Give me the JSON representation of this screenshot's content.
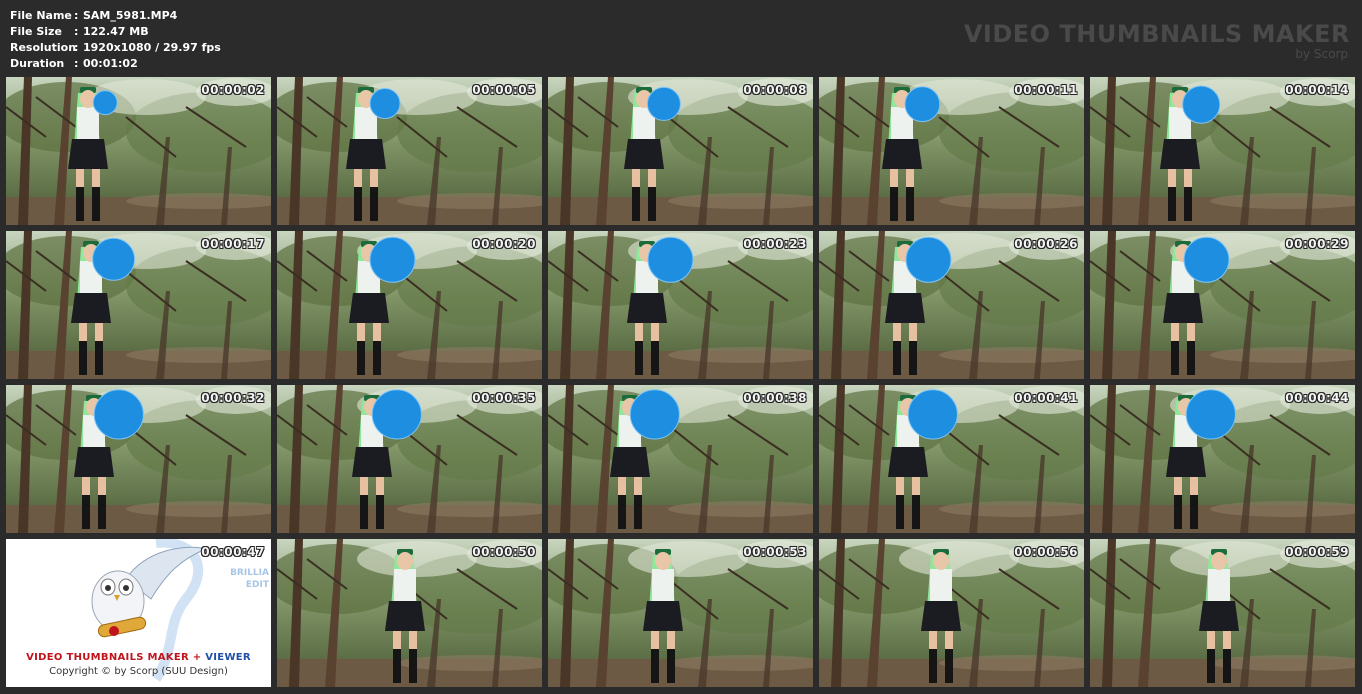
{
  "info": {
    "file_name_label": "File Name",
    "file_name": "SAM_5981.MP4",
    "file_size_label": "File Size",
    "file_size": "122.47 MB",
    "resolution_label": "Resolution",
    "resolution": "1920x1080 / 29.97 fps",
    "duration_label": "Duration",
    "duration": "00:01:02",
    "separator": ":"
  },
  "brand": {
    "title": "VIDEO THUMBNAILS MAKER",
    "byline": "by Scorp"
  },
  "logo": {
    "name_part1": "VIDEO THUMBNAILS MAKER",
    "name_plus": " + ",
    "name_part2": "VIEWER",
    "copyright": "Copyright © by Scorp (SUU Design)",
    "side_line1": "BRILLIA",
    "side_line2": "EDIT"
  },
  "colors": {
    "background": "#2b2b2b",
    "foliage": "#5f7347",
    "balloon": "#1e8ee0",
    "hair": "#7de08a"
  },
  "thumbnails": [
    {
      "ts": "00:00:02",
      "balloon": 0.2
    },
    {
      "ts": "00:00:05",
      "balloon": 0.3
    },
    {
      "ts": "00:00:08",
      "balloon": 0.35
    },
    {
      "ts": "00:00:11",
      "balloon": 0.38
    },
    {
      "ts": "00:00:14",
      "balloon": 0.42
    },
    {
      "ts": "00:00:17",
      "balloon": 0.5
    },
    {
      "ts": "00:00:20",
      "balloon": 0.55
    },
    {
      "ts": "00:00:23",
      "balloon": 0.55
    },
    {
      "ts": "00:00:26",
      "balloon": 0.55
    },
    {
      "ts": "00:00:29",
      "balloon": 0.55
    },
    {
      "ts": "00:00:32",
      "balloon": 0.62
    },
    {
      "ts": "00:00:35",
      "balloon": 0.62
    },
    {
      "ts": "00:00:38",
      "balloon": 0.62
    },
    {
      "ts": "00:00:41",
      "balloon": 0.62
    },
    {
      "ts": "00:00:44",
      "balloon": 0.62
    },
    {
      "ts": "00:00:47",
      "balloon": 0,
      "logo": true
    },
    {
      "ts": "00:00:50",
      "balloon": 0
    },
    {
      "ts": "00:00:53",
      "balloon": 0
    },
    {
      "ts": "00:00:56",
      "balloon": 0
    },
    {
      "ts": "00:00:59",
      "balloon": 0
    }
  ]
}
